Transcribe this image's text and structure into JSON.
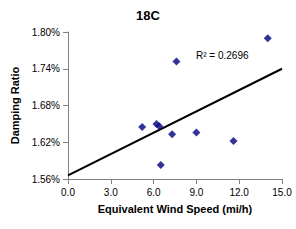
{
  "chart_data": {
    "type": "scatter",
    "title": "18C",
    "x_label": "Equivalent Wind Speed (mi/h)",
    "y_label": "Damping Ratio",
    "annotation": "R² = 0.2696",
    "x": [
      5.2,
      6.2,
      6.4,
      6.5,
      7.3,
      7.6,
      9.0,
      11.6,
      14.0
    ],
    "values": [
      1.645,
      1.65,
      1.646,
      1.583,
      1.633,
      1.752,
      1.636,
      1.622,
      1.79
    ],
    "color": "#000080",
    "marker": "diamond",
    "trendline": {
      "x": [
        0,
        15
      ],
      "values": [
        1.566,
        1.74
      ],
      "color": "#000000"
    },
    "xlim": [
      0,
      15
    ],
    "xticks": [
      {
        "value": 0,
        "label": "0.0"
      },
      {
        "value": 3,
        "label": "3.0"
      },
      {
        "value": 6,
        "label": "6.0"
      },
      {
        "value": 9,
        "label": "9.0"
      },
      {
        "value": 12,
        "label": "12.0"
      },
      {
        "value": 15,
        "label": "15.0"
      }
    ],
    "ylim": [
      1.56,
      1.8
    ],
    "yticks": [
      {
        "value": 1.56,
        "label": "1.56%"
      },
      {
        "value": 1.62,
        "label": "1.62%"
      },
      {
        "value": 1.68,
        "label": "1.68%"
      },
      {
        "value": 1.74,
        "label": "1.74%"
      },
      {
        "value": 1.8,
        "label": "1.80%"
      }
    ],
    "grid": false
  }
}
